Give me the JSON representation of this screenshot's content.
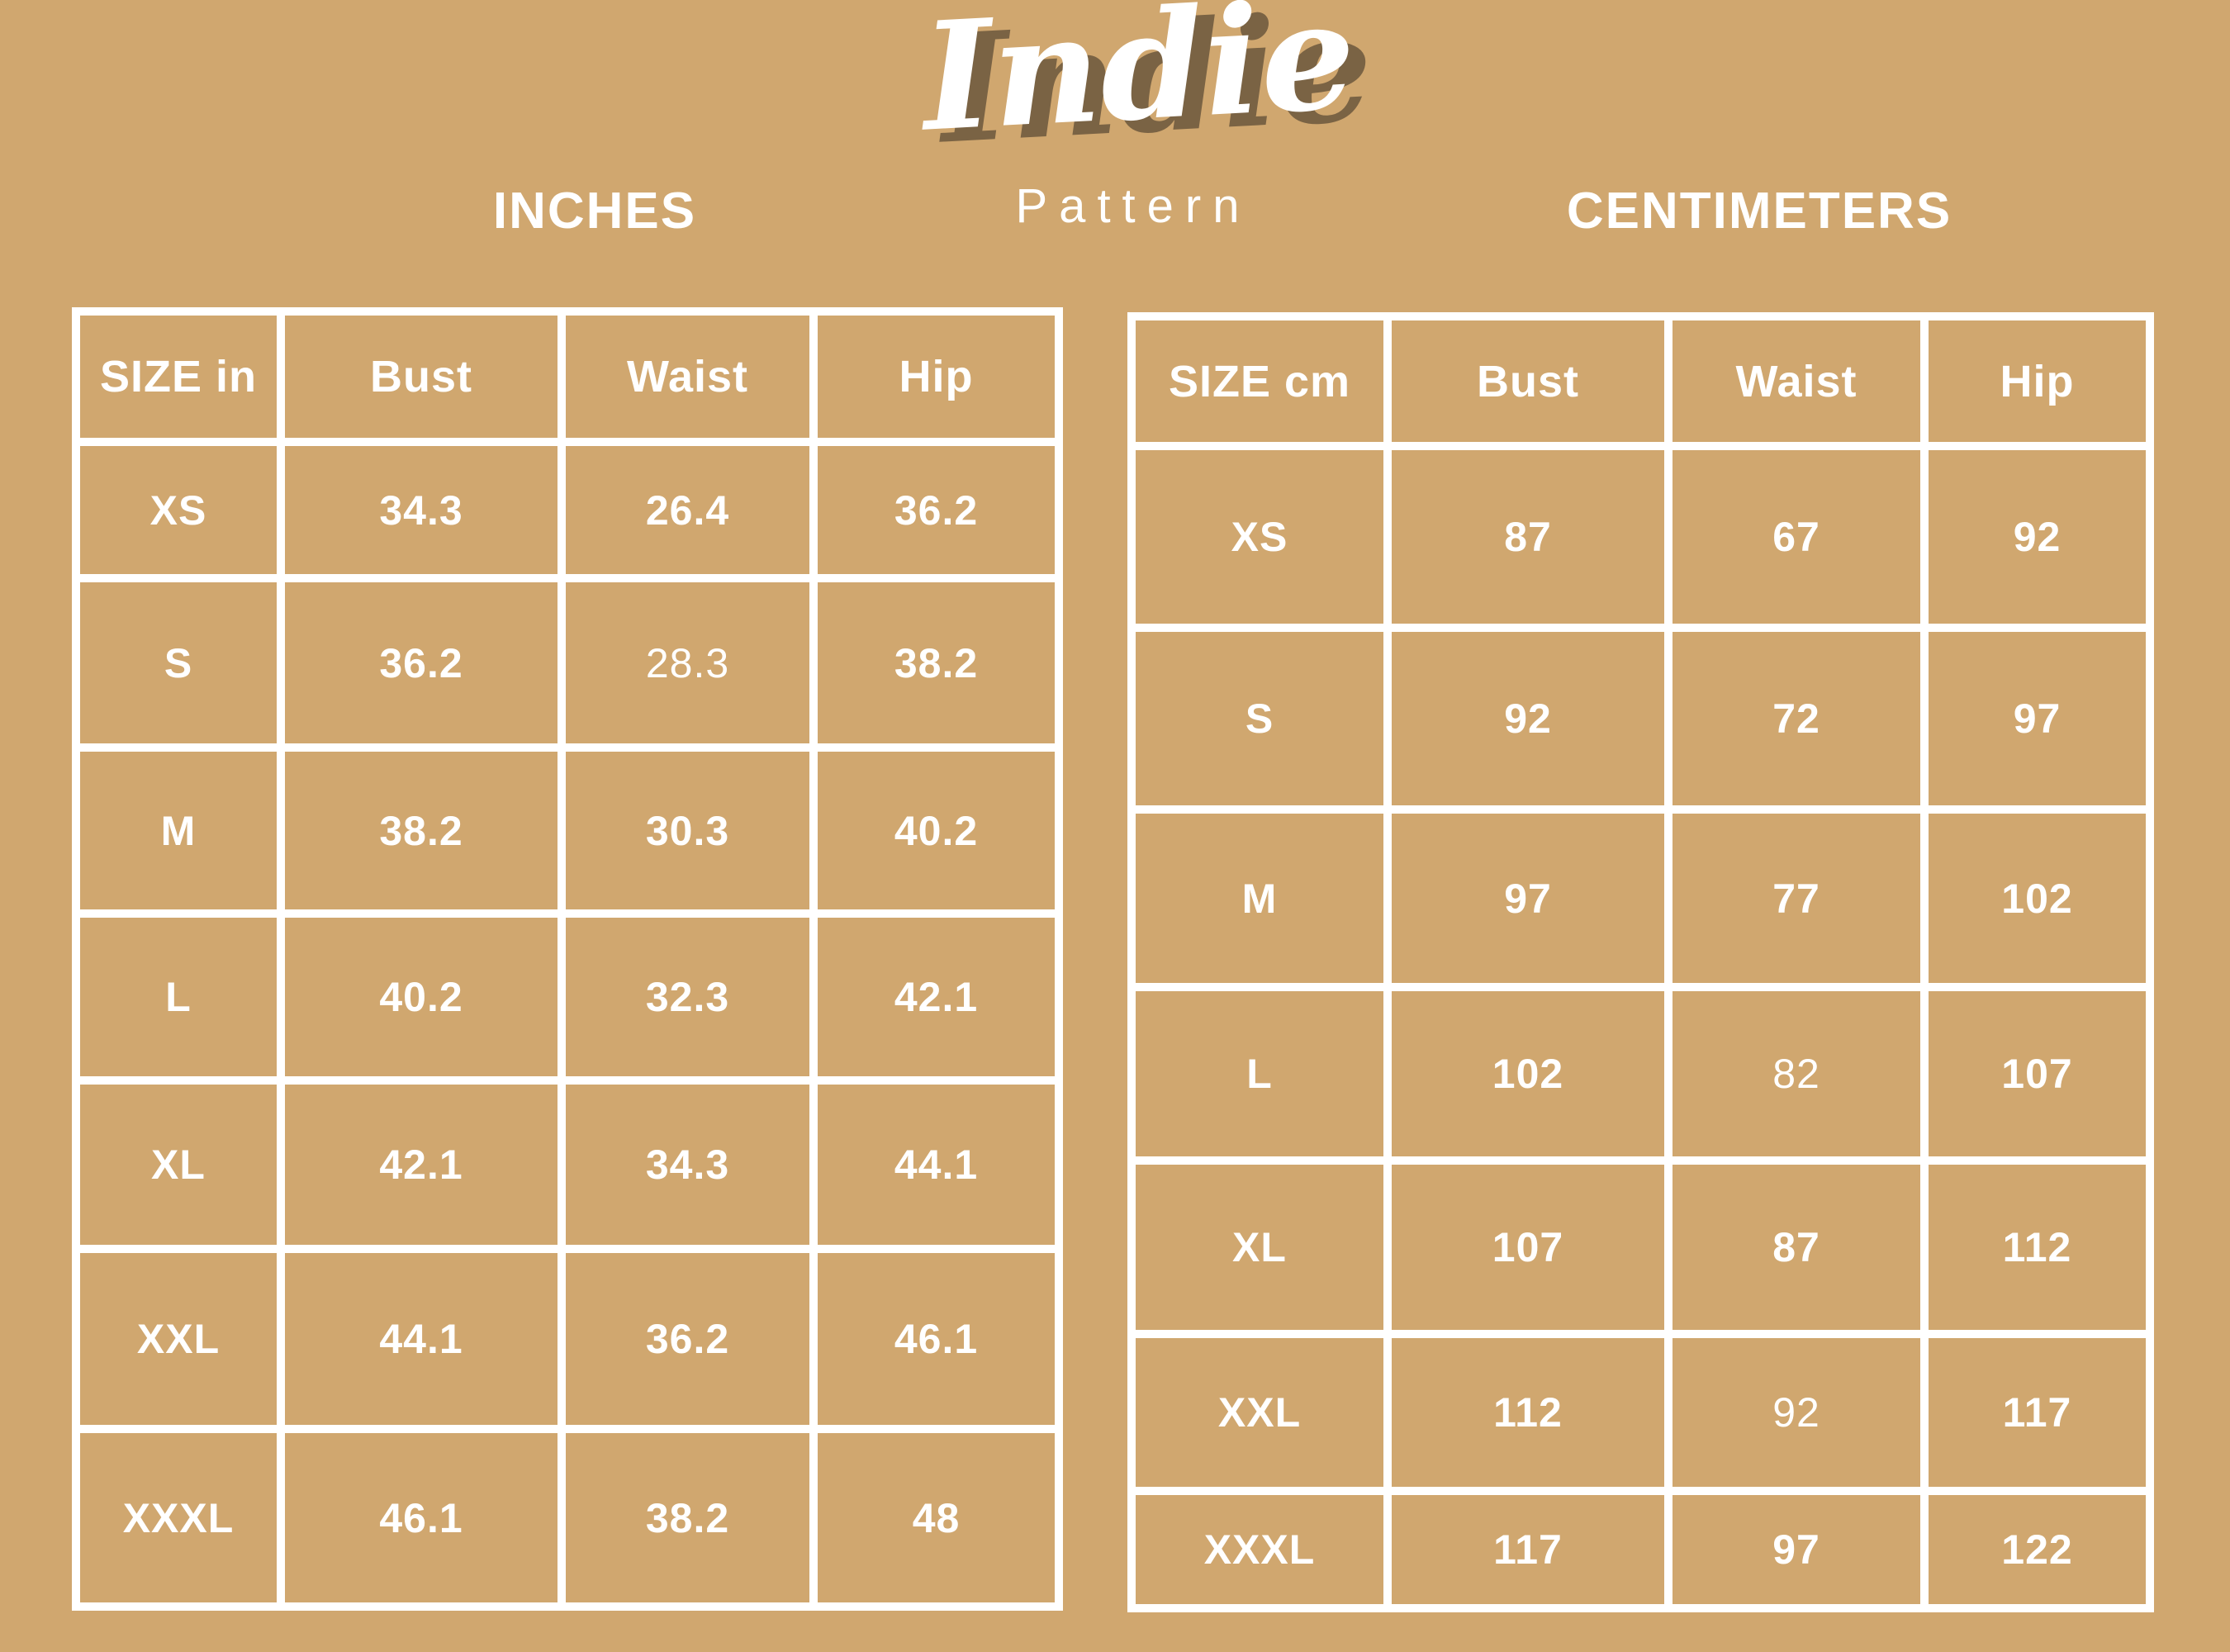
{
  "page": {
    "background_color": "#d0a76f",
    "grid_line_color": "#ffffff",
    "text_color": "#ffffff",
    "logo_shadow_color": "#7a6344"
  },
  "logo": {
    "name": "Indie",
    "subtitle": "Pattern"
  },
  "tables": [
    {
      "id": "inches",
      "title": "INCHES",
      "headers": [
        "SIZE in",
        "Bust",
        "Waist",
        "Hip"
      ],
      "rows": [
        [
          "XS",
          "34.3",
          "26.4",
          "36.2"
        ],
        [
          "S",
          "36.2",
          "28.3",
          "38.2"
        ],
        [
          "M",
          "38.2",
          "30.3",
          "40.2"
        ],
        [
          "L",
          "40.2",
          "32.3",
          "42.1"
        ],
        [
          "XL",
          "42.1",
          "34.3",
          "44.1"
        ],
        [
          "XXL",
          "44.1",
          "36.2",
          "46.1"
        ],
        [
          "XXXL",
          "46.1",
          "38.2",
          "48"
        ]
      ],
      "light_cells": [
        [
          1,
          2
        ]
      ]
    },
    {
      "id": "centimeters",
      "title": "CENTIMETERS",
      "headers": [
        "SIZE cm",
        "Bust",
        "Waist",
        "Hip"
      ],
      "rows": [
        [
          "XS",
          "87",
          "67",
          "92"
        ],
        [
          "S",
          "92",
          "72",
          "97"
        ],
        [
          "M",
          "97",
          "77",
          "102"
        ],
        [
          "L",
          "102",
          "82",
          "107"
        ],
        [
          "XL",
          "107",
          "87",
          "112"
        ],
        [
          "XXL",
          "112",
          "92",
          "117"
        ],
        [
          "XXXL",
          "117",
          "97",
          "122"
        ]
      ],
      "light_cells": [
        [
          3,
          2
        ],
        [
          5,
          2
        ]
      ]
    }
  ],
  "chart_data": [
    {
      "type": "table",
      "title": "INCHES",
      "columns": [
        "SIZE in",
        "Bust",
        "Waist",
        "Hip"
      ],
      "rows": [
        [
          "XS",
          34.3,
          26.4,
          36.2
        ],
        [
          "S",
          36.2,
          28.3,
          38.2
        ],
        [
          "M",
          38.2,
          30.3,
          40.2
        ],
        [
          "L",
          40.2,
          32.3,
          42.1
        ],
        [
          "XL",
          42.1,
          34.3,
          44.1
        ],
        [
          "XXL",
          44.1,
          36.2,
          46.1
        ],
        [
          "XXXL",
          46.1,
          38.2,
          48
        ]
      ]
    },
    {
      "type": "table",
      "title": "CENTIMETERS",
      "columns": [
        "SIZE cm",
        "Bust",
        "Waist",
        "Hip"
      ],
      "rows": [
        [
          "XS",
          87,
          67,
          92
        ],
        [
          "S",
          92,
          72,
          97
        ],
        [
          "M",
          97,
          77,
          102
        ],
        [
          "L",
          102,
          82,
          107
        ],
        [
          "XL",
          107,
          87,
          112
        ],
        [
          "XXL",
          112,
          92,
          117
        ],
        [
          "XXXL",
          117,
          97,
          122
        ]
      ]
    }
  ]
}
